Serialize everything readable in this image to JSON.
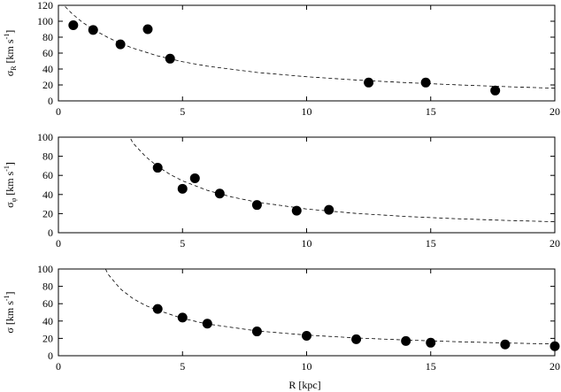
{
  "chart_data": [
    {
      "type": "scatter",
      "ylabel": {
        "base": "σ",
        "sub": "R",
        "unit": "[km s",
        "exp": "-1",
        "close": "]"
      },
      "xlim": [
        0,
        20
      ],
      "ylim": [
        0,
        120
      ],
      "x_ticks": [
        0,
        5,
        10,
        15,
        20
      ],
      "y_ticks": [
        0,
        20,
        40,
        60,
        80,
        100,
        120
      ],
      "grid": false,
      "points": [
        {
          "x": 0.6,
          "y": 95
        },
        {
          "x": 1.4,
          "y": 89
        },
        {
          "x": 2.5,
          "y": 71
        },
        {
          "x": 3.6,
          "y": 90
        },
        {
          "x": 4.5,
          "y": 53
        },
        {
          "x": 12.5,
          "y": 23
        },
        {
          "x": 14.8,
          "y": 23
        },
        {
          "x": 17.6,
          "y": 13
        }
      ],
      "fit_curve": {
        "style": "dashed",
        "x": [
          0.1,
          0.3,
          0.5,
          0.75,
          1,
          1.5,
          2,
          2.5,
          3,
          4,
          5,
          6,
          8,
          10,
          12,
          14,
          16,
          18,
          20
        ],
        "y": [
          124,
          117.5,
          111,
          104.2,
          98,
          88,
          79.5,
          72.3,
          66.2,
          56.5,
          49.2,
          43.6,
          35.7,
          30.3,
          26.2,
          22.9,
          20.2,
          17.9,
          15.9
        ]
      }
    },
    {
      "type": "scatter",
      "ylabel": {
        "base": "σ",
        "sub": "φ",
        "unit": "[km s",
        "exp": "-1",
        "close": "]"
      },
      "xlim": [
        0,
        20
      ],
      "ylim": [
        0,
        100
      ],
      "x_ticks": [
        0,
        5,
        10,
        15,
        20
      ],
      "y_ticks": [
        0,
        20,
        40,
        60,
        80,
        100
      ],
      "grid": false,
      "points": [
        {
          "x": 4.0,
          "y": 68
        },
        {
          "x": 5.0,
          "y": 46
        },
        {
          "x": 5.5,
          "y": 57
        },
        {
          "x": 6.5,
          "y": 41
        },
        {
          "x": 8.0,
          "y": 29
        },
        {
          "x": 9.6,
          "y": 23
        },
        {
          "x": 10.9,
          "y": 24
        }
      ],
      "fit_curve": {
        "style": "dashed",
        "x": [
          2.8,
          3,
          3.5,
          4,
          4.5,
          5,
          6,
          7,
          8,
          10,
          12,
          14,
          16,
          18,
          20
        ],
        "y": [
          104,
          94,
          80,
          69.3,
          61,
          54.3,
          44.3,
          37.3,
          32,
          24.8,
          20.2,
          17,
          14.7,
          12.9,
          11.5
        ]
      }
    },
    {
      "type": "scatter",
      "ylabel": {
        "base": "σ",
        "sub": "",
        "unit": "[km s",
        "exp": "-1",
        "close": "]"
      },
      "xlabel": "R [kpc]",
      "xlim": [
        0,
        20
      ],
      "ylim": [
        0,
        100
      ],
      "x_ticks": [
        0,
        5,
        10,
        15,
        20
      ],
      "y_ticks": [
        0,
        20,
        40,
        60,
        80,
        100
      ],
      "grid": false,
      "points": [
        {
          "x": 4.0,
          "y": 54
        },
        {
          "x": 5.0,
          "y": 44
        },
        {
          "x": 6.0,
          "y": 37
        },
        {
          "x": 8.0,
          "y": 28
        },
        {
          "x": 10.0,
          "y": 23
        },
        {
          "x": 12.0,
          "y": 19
        },
        {
          "x": 14.0,
          "y": 17
        },
        {
          "x": 15.0,
          "y": 15
        },
        {
          "x": 18.0,
          "y": 13
        },
        {
          "x": 20.0,
          "y": 11
        }
      ],
      "fit_curve": {
        "style": "dashed",
        "x": [
          1.9,
          2,
          2.5,
          3,
          3.5,
          4,
          5,
          6,
          8,
          10,
          12,
          14,
          16,
          18,
          20
        ],
        "y": [
          100,
          94,
          77,
          66,
          58,
          52.5,
          43,
          36.6,
          28.6,
          23.8,
          20.5,
          18.1,
          16.2,
          14.7,
          13.5
        ]
      }
    }
  ]
}
